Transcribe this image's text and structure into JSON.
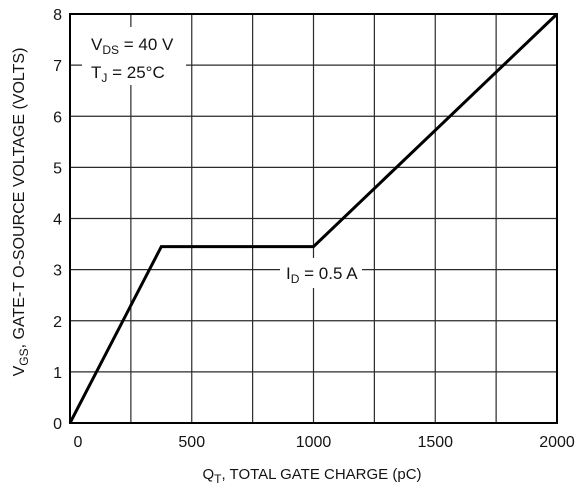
{
  "chart_data": {
    "type": "line",
    "xlim": [
      0,
      2000
    ],
    "ylim": [
      0,
      8
    ],
    "x_ticks": [
      0,
      500,
      1000,
      1500,
      2000
    ],
    "y_ticks": [
      0,
      1,
      2,
      3,
      4,
      5,
      6,
      7,
      8
    ],
    "grid": true,
    "x_grid_step": 250,
    "y_grid_step": 1,
    "xlabel": {
      "main": "Q",
      "sub": "T",
      "rest": ", TOTAL GATE CHARGE (pC)"
    },
    "ylabel": {
      "main": "V",
      "sub": "GS",
      "rest": ", GATE-T O-SOURCE VOLTAGE (VOLTS)"
    },
    "series": [
      {
        "x": [
          0,
          375,
          1000,
          2000
        ],
        "y": [
          0,
          3.45,
          3.45,
          8
        ],
        "color": "#000000"
      }
    ],
    "annotations": [
      {
        "main": "V",
        "sub": "DS",
        "rest": " = 40 V"
      },
      {
        "main": "T",
        "sub": "J",
        "rest": " = 25°C"
      },
      {
        "main": "I",
        "sub": "D",
        "rest": " = 0.5 A"
      }
    ]
  }
}
